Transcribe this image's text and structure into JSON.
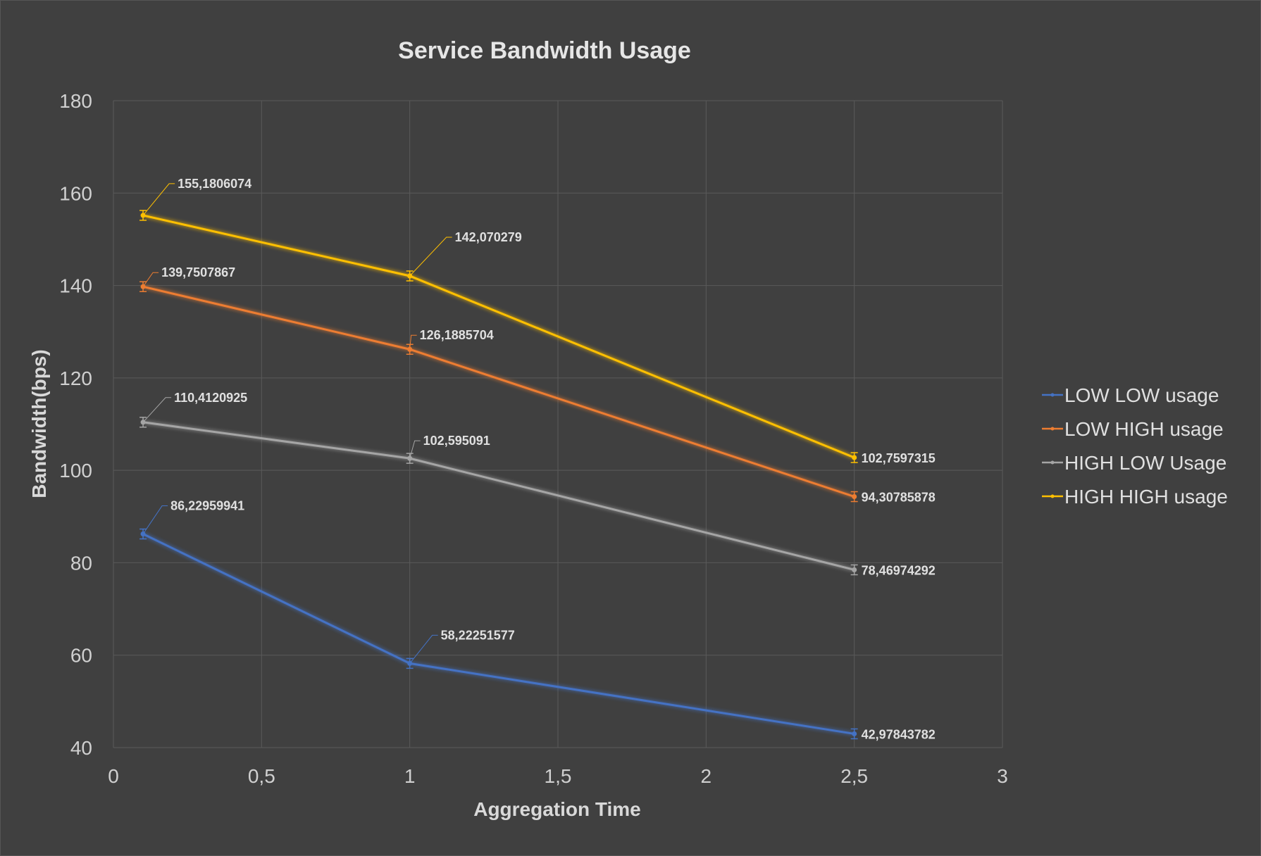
{
  "chart_data": {
    "type": "line",
    "title": "Service Bandwidth Usage",
    "xlabel": "Aggregation Time",
    "ylabel": "Bandwidth(bps)",
    "xlim": [
      0,
      3
    ],
    "ylim": [
      40,
      180
    ],
    "xticks": [
      0,
      0.5,
      1,
      1.5,
      2,
      2.5,
      3
    ],
    "xtick_labels": [
      "0",
      "0,5",
      "1",
      "1,5",
      "2",
      "2,5",
      "3"
    ],
    "yticks": [
      40,
      60,
      80,
      100,
      120,
      140,
      160,
      180
    ],
    "ytick_labels": [
      "40",
      "60",
      "80",
      "100",
      "120",
      "140",
      "160",
      "180"
    ],
    "grid": true,
    "legend_position": "right",
    "series": [
      {
        "name": "LOW LOW usage",
        "color": "#4472c4",
        "x": [
          0.1,
          1,
          2.5
        ],
        "y": [
          86.22959941,
          58.22251577,
          42.97843782
        ],
        "labels": [
          "86,22959941",
          "58,22251577",
          "42,97843782"
        ]
      },
      {
        "name": "LOW HIGH usage",
        "color": "#ed7d31",
        "x": [
          0.1,
          1,
          2.5
        ],
        "y": [
          139.7507867,
          126.1885704,
          94.30785878
        ],
        "labels": [
          "139,7507867",
          "126,1885704",
          "94,30785878"
        ]
      },
      {
        "name": "HIGH LOW Usage",
        "color": "#a5a5a5",
        "x": [
          0.1,
          1,
          2.5
        ],
        "y": [
          110.4120925,
          102.595091,
          78.46974292
        ],
        "labels": [
          "110,4120925",
          "102,595091",
          "78,46974292"
        ]
      },
      {
        "name": "HIGH HIGH usage",
        "color": "#ffc000",
        "x": [
          0.1,
          1,
          2.5
        ],
        "y": [
          155.1806074,
          142.070279,
          102.7597315
        ],
        "labels": [
          "155,1806074",
          "142,070279",
          "102,7597315"
        ]
      }
    ]
  }
}
